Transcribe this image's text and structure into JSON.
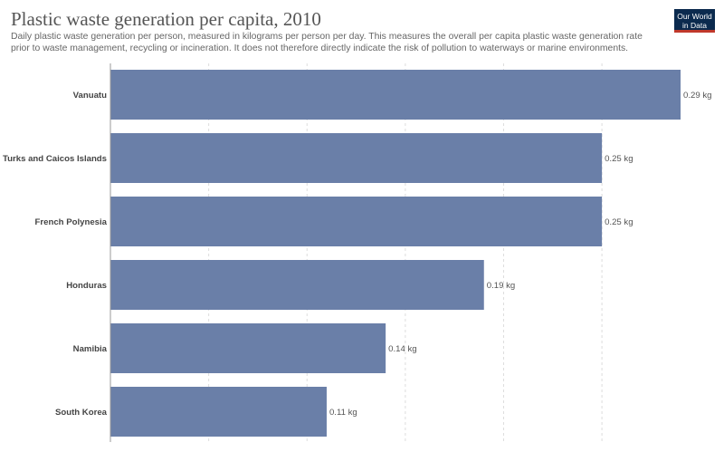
{
  "title": "Plastic waste generation per capita, 2010",
  "subtitle": "Daily plastic waste generation per person, measured in kilograms per person per day. This measures the overall per capita plastic waste generation rate prior to waste management, recycling or incineration. It does not therefore directly indicate the risk of pollution to waterways or marine environments.",
  "logo": {
    "line1": "Our World",
    "line2": "in Data",
    "bg_color": "#0b2a4e",
    "accent_color": "#c0392b"
  },
  "chart_data": {
    "type": "bar",
    "orientation": "horizontal",
    "categories": [
      "Vanuatu",
      "Turks and Caicos Islands",
      "French Polynesia",
      "Honduras",
      "Namibia",
      "South Korea"
    ],
    "values": [
      0.29,
      0.25,
      0.25,
      0.19,
      0.14,
      0.11
    ],
    "value_labels": [
      "0.29 kg",
      "0.25 kg",
      "0.25 kg",
      "0.19 kg",
      "0.14 kg",
      "0.11 kg"
    ],
    "unit": "kg",
    "xlim": [
      0,
      0.29
    ],
    "gridlines": [
      0.05,
      0.1,
      0.15,
      0.2,
      0.25
    ],
    "grid": true,
    "bar_color": "#6a7fa8",
    "title": "Plastic waste generation per capita, 2010",
    "xlabel": "",
    "ylabel": ""
  }
}
